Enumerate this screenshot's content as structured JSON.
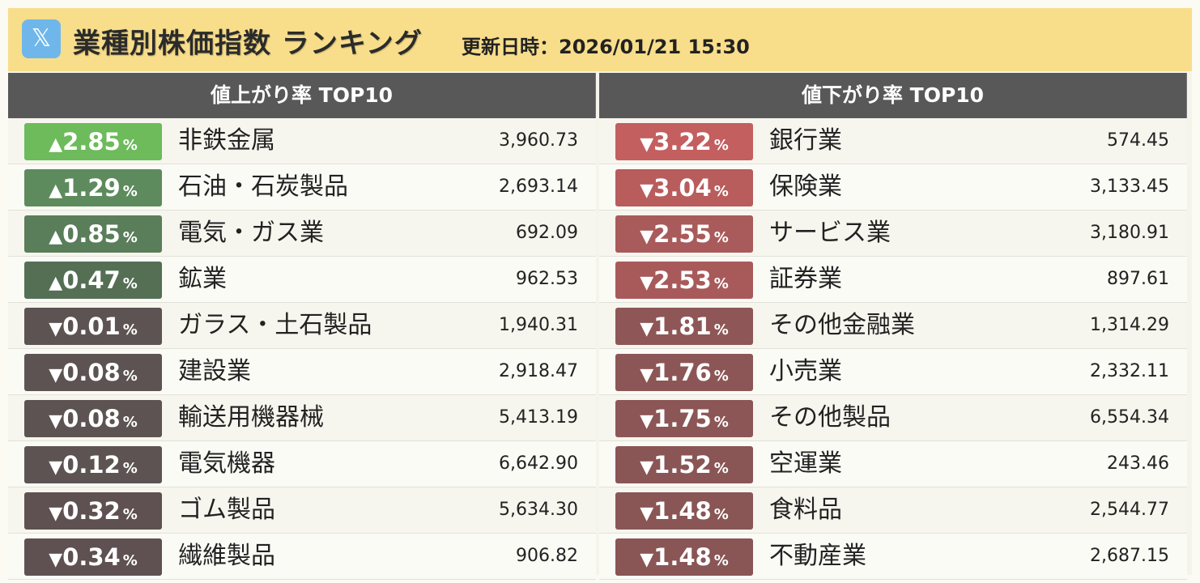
{
  "header": {
    "logo_glyph": "𝕏",
    "title": "業種別株価指数 ランキング",
    "updated": "更新日時：2026/01/21 15:30"
  },
  "unit": "%",
  "up_arrow": "▲",
  "down_arrow": "▼",
  "gainers": {
    "title": "値上がり率 TOP10",
    "rows": [
      {
        "dir": "up",
        "pct": "2.85",
        "name": "非鉄金属",
        "index": "3,960.73",
        "color": "#6dbb5b"
      },
      {
        "dir": "up",
        "pct": "1.29",
        "name": "石油・石炭製品",
        "index": "2,693.14",
        "color": "#5e8b5d"
      },
      {
        "dir": "up",
        "pct": "0.85",
        "name": "電気・ガス業",
        "index": "692.09",
        "color": "#5a7d5a"
      },
      {
        "dir": "up",
        "pct": "0.47",
        "name": "鉱業",
        "index": "962.53",
        "color": "#556f55"
      },
      {
        "dir": "down",
        "pct": "0.01",
        "name": "ガラス・土石製品",
        "index": "1,940.31",
        "color": "#5d5353"
      },
      {
        "dir": "down",
        "pct": "0.08",
        "name": "建設業",
        "index": "2,918.47",
        "color": "#5d5353"
      },
      {
        "dir": "down",
        "pct": "0.08",
        "name": "輸送用機器械",
        "index": "5,413.19",
        "color": "#5d5353"
      },
      {
        "dir": "down",
        "pct": "0.12",
        "name": "電気機器",
        "index": "6,642.90",
        "color": "#5d5353"
      },
      {
        "dir": "down",
        "pct": "0.32",
        "name": "ゴム製品",
        "index": "5,634.30",
        "color": "#5f5151"
      },
      {
        "dir": "down",
        "pct": "0.34",
        "name": "繊維製品",
        "index": "906.82",
        "color": "#5f5151"
      }
    ]
  },
  "losers": {
    "title": "値下がり率 TOP10",
    "rows": [
      {
        "dir": "down",
        "pct": "3.22",
        "name": "銀行業",
        "index": "574.45",
        "color": "#c35f5f"
      },
      {
        "dir": "down",
        "pct": "3.04",
        "name": "保険業",
        "index": "3,133.45",
        "color": "#b85c5c"
      },
      {
        "dir": "down",
        "pct": "2.55",
        "name": "サービス業",
        "index": "3,180.91",
        "color": "#a95a5a"
      },
      {
        "dir": "down",
        "pct": "2.53",
        "name": "証券業",
        "index": "897.61",
        "color": "#a85a5a"
      },
      {
        "dir": "down",
        "pct": "1.81",
        "name": "その他金融業",
        "index": "1,314.29",
        "color": "#8e5656"
      },
      {
        "dir": "down",
        "pct": "1.76",
        "name": "小売業",
        "index": "2,332.11",
        "color": "#8d5656"
      },
      {
        "dir": "down",
        "pct": "1.75",
        "name": "その他製品",
        "index": "6,554.34",
        "color": "#8c5656"
      },
      {
        "dir": "down",
        "pct": "1.52",
        "name": "空運業",
        "index": "243.46",
        "color": "#8a5555"
      },
      {
        "dir": "down",
        "pct": "1.48",
        "name": "食料品",
        "index": "2,544.77",
        "color": "#895555"
      },
      {
        "dir": "down",
        "pct": "1.48",
        "name": "不動産業",
        "index": "2,687.15",
        "color": "#895555"
      }
    ]
  }
}
